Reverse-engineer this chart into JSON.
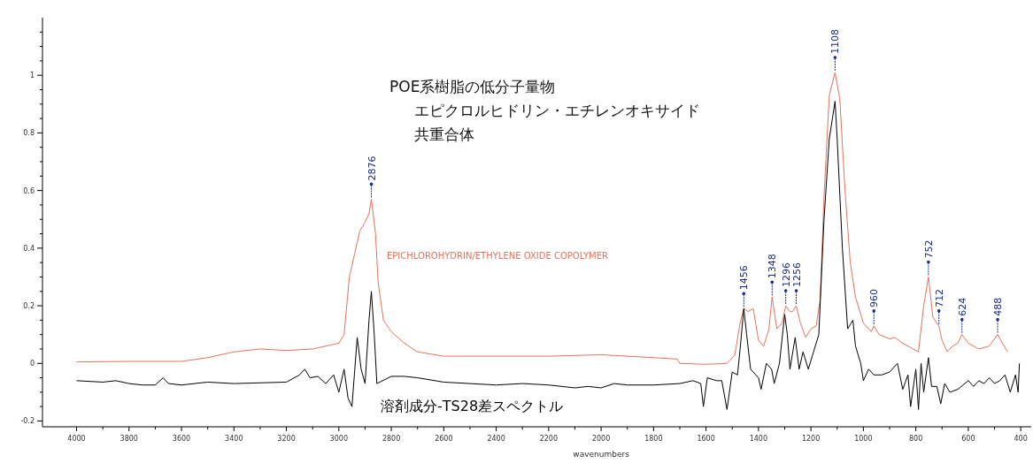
{
  "chart_data": {
    "type": "line",
    "xlabel": "wavenumbers",
    "xlim": [
      4130,
      360
    ],
    "ylim": [
      -0.22,
      1.2
    ],
    "xticks": [
      4000,
      {
        "value": 3900,
        "label": null
      },
      3800,
      {
        "value": 3700,
        "label": null
      },
      3600,
      {
        "value": 3500,
        "label": null
      },
      3400,
      {
        "value": 3300,
        "label": null
      },
      3200,
      {
        "value": 3100,
        "label": null
      },
      3000,
      {
        "value": 2900,
        "label": null
      },
      2800,
      {
        "value": 2700,
        "label": null
      },
      2600,
      {
        "value": 2500,
        "label": null
      },
      2400,
      {
        "value": 2300,
        "label": null
      },
      2200,
      {
        "value": 2100,
        "label": null
      },
      2000,
      {
        "value": 1900,
        "label": null
      },
      1800,
      {
        "value": 1700,
        "label": null
      },
      1600,
      {
        "value": 1500,
        "label": null
      },
      1400,
      {
        "value": 1300,
        "label": null
      },
      1200,
      {
        "value": 1100,
        "label": null
      },
      1000,
      {
        "value": 900,
        "label": null
      },
      800,
      {
        "value": 700,
        "label": null
      },
      600,
      {
        "value": 500,
        "label": null
      },
      400
    ],
    "yticks": [
      -0.2,
      {
        "value": -0.15,
        "label": null
      },
      {
        "value": -0.1,
        "label": null
      },
      {
        "value": -0.05,
        "label": null
      },
      0,
      {
        "value": 0.05,
        "label": null
      },
      {
        "value": 0.1,
        "label": null
      },
      {
        "value": 0.15,
        "label": null
      },
      0.2,
      {
        "value": 0.25,
        "label": null
      },
      {
        "value": 0.3,
        "label": null
      },
      {
        "value": 0.35,
        "label": null
      },
      0.4,
      {
        "value": 0.45,
        "label": null
      },
      {
        "value": 0.5,
        "label": null
      },
      {
        "value": 0.55,
        "label": null
      },
      0.6,
      {
        "value": 0.65,
        "label": null
      },
      {
        "value": 0.7,
        "label": null
      },
      {
        "value": 0.75,
        "label": null
      },
      0.8,
      {
        "value": 0.85,
        "label": null
      },
      {
        "value": 0.9,
        "label": null
      },
      {
        "value": 0.95,
        "label": null
      },
      1,
      {
        "value": 1.05,
        "label": null
      },
      {
        "value": 1.1,
        "label": null
      },
      {
        "value": 1.15,
        "label": null
      }
    ],
    "grid": false,
    "line_style": "solid",
    "series": [
      {
        "name": "EPICHLOROHYDRIN/ETHYLENE OXIDE COPOLYMER",
        "color": "#e8725a",
        "x": [
          4000,
          3800,
          3600,
          3500,
          3400,
          3300,
          3200,
          3100,
          3000,
          2980,
          2960,
          2940,
          2920,
          2900,
          2885,
          2876,
          2860,
          2850,
          2830,
          2800,
          2750,
          2700,
          2600,
          2400,
          2200,
          2000,
          1800,
          1710,
          1700,
          1600,
          1520,
          1490,
          1470,
          1456,
          1440,
          1420,
          1400,
          1380,
          1360,
          1348,
          1330,
          1310,
          1296,
          1280,
          1270,
          1256,
          1240,
          1220,
          1200,
          1180,
          1165,
          1150,
          1130,
          1108,
          1090,
          1070,
          1050,
          1030,
          1000,
          970,
          960,
          940,
          900,
          880,
          850,
          810,
          790,
          770,
          752,
          735,
          712,
          700,
          680,
          660,
          640,
          624,
          600,
          560,
          520,
          488,
          470,
          450
        ],
        "values": [
          0.005,
          0.007,
          0.007,
          0.02,
          0.04,
          0.05,
          0.045,
          0.05,
          0.07,
          0.1,
          0.3,
          0.38,
          0.46,
          0.49,
          0.52,
          0.57,
          0.45,
          0.28,
          0.15,
          0.11,
          0.07,
          0.04,
          0.025,
          0.025,
          0.025,
          0.03,
          0.02,
          0.015,
          0.0,
          -0.003,
          0.0,
          0.03,
          0.14,
          0.19,
          0.18,
          0.19,
          0.08,
          0.06,
          0.12,
          0.23,
          0.12,
          0.14,
          0.2,
          0.18,
          0.18,
          0.2,
          0.14,
          0.09,
          0.12,
          0.13,
          0.22,
          0.58,
          0.93,
          1.01,
          0.92,
          0.6,
          0.35,
          0.23,
          0.14,
          0.11,
          0.13,
          0.1,
          0.085,
          0.09,
          0.07,
          0.05,
          0.04,
          0.2,
          0.3,
          0.16,
          0.13,
          0.08,
          0.04,
          0.06,
          0.07,
          0.1,
          0.07,
          0.05,
          0.06,
          0.1,
          0.07,
          0.04
        ]
      },
      {
        "name": "溶剤成分-TS28差スペクトル",
        "color": "#000000",
        "x": [
          4000,
          3900,
          3850,
          3800,
          3750,
          3700,
          3670,
          3650,
          3600,
          3500,
          3400,
          3200,
          3150,
          3130,
          3110,
          3080,
          3050,
          3020,
          3000,
          2980,
          2965,
          2950,
          2940,
          2930,
          2915,
          2900,
          2885,
          2876,
          2865,
          2855,
          2800,
          2750,
          2700,
          2600,
          2500,
          2400,
          2300,
          2200,
          2100,
          2050,
          2000,
          1950,
          1900,
          1800,
          1700,
          1650,
          1620,
          1610,
          1595,
          1560,
          1540,
          1520,
          1500,
          1480,
          1470,
          1456,
          1445,
          1430,
          1400,
          1390,
          1370,
          1350,
          1340,
          1320,
          1300,
          1290,
          1280,
          1260,
          1245,
          1230,
          1210,
          1190,
          1170,
          1150,
          1130,
          1108,
          1100,
          1080,
          1060,
          1040,
          1030,
          1010,
          1000,
          980,
          960,
          930,
          900,
          870,
          850,
          830,
          820,
          800,
          790,
          780,
          770,
          752,
          740,
          720,
          705,
          690,
          670,
          640,
          600,
          580,
          560,
          540,
          520,
          500,
          480,
          460,
          440,
          420,
          410,
          405
        ],
        "values": [
          -0.06,
          -0.065,
          -0.06,
          -0.07,
          -0.075,
          -0.075,
          -0.05,
          -0.07,
          -0.075,
          -0.065,
          -0.07,
          -0.065,
          -0.04,
          -0.02,
          -0.05,
          -0.045,
          -0.07,
          -0.04,
          -0.1,
          -0.02,
          -0.12,
          -0.15,
          -0.03,
          0.09,
          -0.02,
          -0.07,
          0.15,
          0.25,
          0.1,
          -0.07,
          -0.045,
          -0.045,
          -0.05,
          -0.065,
          -0.07,
          -0.075,
          -0.07,
          -0.075,
          -0.085,
          -0.08,
          -0.085,
          -0.07,
          -0.075,
          -0.075,
          -0.07,
          -0.06,
          -0.07,
          -0.15,
          -0.05,
          -0.06,
          -0.06,
          -0.16,
          -0.03,
          -0.04,
          0.05,
          0.19,
          0.1,
          -0.02,
          -0.05,
          -0.09,
          0.0,
          -0.02,
          -0.07,
          0.0,
          0.17,
          0.1,
          -0.02,
          0.09,
          -0.02,
          0.04,
          -0.02,
          0.04,
          0.1,
          0.5,
          0.78,
          0.91,
          0.78,
          0.4,
          0.12,
          0.15,
          0.06,
          0.0,
          -0.06,
          -0.02,
          -0.04,
          -0.04,
          -0.03,
          0.0,
          -0.09,
          -0.04,
          -0.15,
          -0.02,
          -0.16,
          0.0,
          -0.1,
          0.02,
          -0.08,
          -0.08,
          -0.14,
          -0.07,
          -0.1,
          -0.09,
          -0.06,
          -0.08,
          -0.06,
          -0.07,
          -0.05,
          -0.07,
          -0.06,
          -0.04,
          -0.1,
          -0.04,
          -0.1,
          0.0
        ]
      }
    ],
    "annotations": [
      "POE系樹脂の低分子量物",
      "エピクロルヒドリン・エチレンオキサイド",
      "共重合体",
      {
        "text": "2876",
        "x": 2876,
        "y": 0.57
      },
      {
        "text": "1456",
        "x": 1456,
        "y": 0.19
      },
      {
        "text": "1348",
        "x": 1348,
        "y": 0.23
      },
      {
        "text": "1296",
        "x": 1296,
        "y": 0.2
      },
      {
        "text": "1256",
        "x": 1256,
        "y": 0.2
      },
      {
        "text": "1108",
        "x": 1108,
        "y": 1.01
      },
      {
        "text": "960",
        "x": 960,
        "y": 0.13
      },
      {
        "text": "752",
        "x": 752,
        "y": 0.3
      },
      {
        "text": "712",
        "x": 712,
        "y": 0.13
      },
      {
        "text": "624",
        "x": 624,
        "y": 0.1
      },
      {
        "text": "488",
        "x": 488,
        "y": 0.1
      }
    ]
  }
}
